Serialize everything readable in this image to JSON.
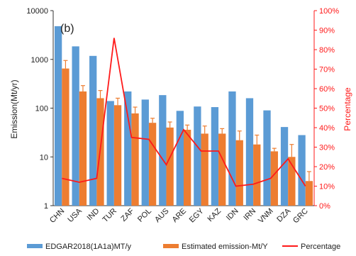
{
  "chart_data": {
    "type": "bar",
    "panel_label": "(b)",
    "ylabel": "Emission(Mt/yr)",
    "y2label": "Percentage",
    "y_scale": "log",
    "ylim": [
      1,
      10000
    ],
    "y_ticks": [
      "1",
      "10",
      "100",
      "1000",
      "10000"
    ],
    "y2lim": [
      0,
      100
    ],
    "y2_ticks": [
      "0%",
      "10%",
      "20%",
      "30%",
      "40%",
      "50%",
      "60%",
      "70%",
      "80%",
      "90%",
      "100%"
    ],
    "categories": [
      "CHN",
      "USA",
      "IND",
      "TUR",
      "ZAF",
      "POL",
      "AUS",
      "ARE",
      "EGY",
      "KAZ",
      "IDN",
      "IRN",
      "VNM",
      "DZA",
      "GRC"
    ],
    "series": [
      {
        "name": "EDGAR2018(1A1a)MT/y",
        "type": "bar",
        "axis": "left",
        "color": "#5b9bd5",
        "values": [
          4800,
          1850,
          1180,
          140,
          220,
          150,
          185,
          88,
          108,
          105,
          220,
          160,
          90,
          41,
          28
        ]
      },
      {
        "name": "Estimated emission-Mt/Y",
        "type": "bar",
        "axis": "left",
        "color": "#ed7d31",
        "values": [
          650,
          220,
          160,
          115,
          78,
          50,
          40,
          36,
          30,
          30,
          22,
          18,
          13,
          10,
          3.2
        ],
        "error_upper": [
          950,
          290,
          230,
          160,
          105,
          62,
          52,
          45,
          43,
          38,
          34,
          28,
          15,
          18,
          5
        ]
      },
      {
        "name": "Percentage",
        "type": "line",
        "axis": "right",
        "color": "#ff1a1a",
        "values": [
          14,
          12,
          14,
          86,
          35,
          34,
          21,
          39,
          28,
          28,
          10,
          11,
          14,
          24,
          10
        ]
      }
    ],
    "legend": [
      {
        "label": "EDGAR2018(1A1a)MT/y",
        "color": "#5b9bd5",
        "kind": "bar"
      },
      {
        "label": "Estimated emission-Mt/Y",
        "color": "#ed7d31",
        "kind": "bar"
      },
      {
        "label": "Percentage",
        "color": "#ff1a1a",
        "kind": "line"
      }
    ],
    "legend_position": "bottom",
    "grid": false
  }
}
